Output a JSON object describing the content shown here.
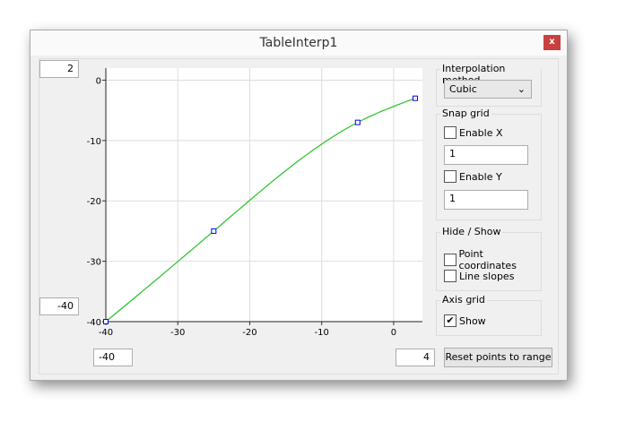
{
  "window": {
    "title": "TableInterp1",
    "close_label": "x"
  },
  "range": {
    "y_max": "2",
    "y_min": "-40",
    "x_min": "-40",
    "x_max": "4"
  },
  "interpolation": {
    "label": "Interpolation method",
    "value": "Cubic"
  },
  "snap_grid": {
    "label": "Snap grid",
    "enable_x": {
      "label": "Enable X",
      "checked": false
    },
    "x_value": "1",
    "enable_y": {
      "label": "Enable Y",
      "checked": false
    },
    "y_value": "1"
  },
  "hide_show": {
    "label": "Hide / Show",
    "point_coordinates": {
      "label": "Point coordinates",
      "checked": false
    },
    "line_slopes": {
      "label": "Line slopes",
      "checked": false
    }
  },
  "axis_grid": {
    "label": "Axis grid",
    "show": {
      "label": "Show",
      "checked": true,
      "mark": "✔"
    }
  },
  "reset_button": "Reset points to range",
  "chart_data": {
    "type": "line",
    "interpolation": "cubic",
    "xlim": [
      -40,
      4
    ],
    "ylim": [
      -40,
      2
    ],
    "x_ticks": [
      -40,
      -30,
      -20,
      -10,
      0
    ],
    "y_ticks": [
      0,
      -10,
      -20,
      -30,
      -40
    ],
    "x_tick_labels": [
      "-40",
      "-30",
      "-20",
      "-10",
      "0"
    ],
    "y_tick_labels": [
      "0",
      "-10",
      "-20",
      "-30",
      "-40"
    ],
    "points": [
      {
        "x": -40,
        "y": -40
      },
      {
        "x": -25,
        "y": -25
      },
      {
        "x": -5,
        "y": -7
      },
      {
        "x": 3,
        "y": -3
      }
    ],
    "grid": true,
    "line_color": "#22c322",
    "point_color": "#0000ff"
  }
}
